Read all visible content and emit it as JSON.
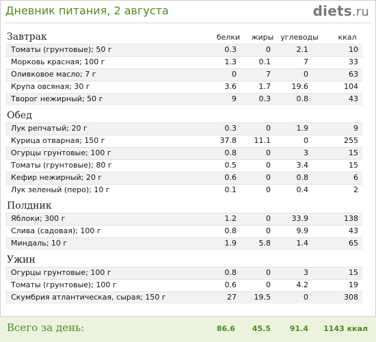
{
  "header": {
    "title": "Дневник питания, 2 августа",
    "logo_main": "diets",
    "logo_tld": ".ru"
  },
  "columns": [
    "белки",
    "жиры",
    "углеводы",
    "ккал"
  ],
  "sections": [
    {
      "title": "Завтрак",
      "rows": [
        {
          "name": "Томаты (грунтовые); 50 г",
          "protein": "0.3",
          "fat": "0",
          "carbs": "2.1",
          "kcal": "10"
        },
        {
          "name": "Морковь красная; 100 г",
          "protein": "1.3",
          "fat": "0.1",
          "carbs": "7",
          "kcal": "33"
        },
        {
          "name": "Оливковое масло; 7 г",
          "protein": "0",
          "fat": "7",
          "carbs": "0",
          "kcal": "63"
        },
        {
          "name": "Крупа овсяная; 30 г",
          "protein": "3.6",
          "fat": "1.7",
          "carbs": "19.6",
          "kcal": "104"
        },
        {
          "name": "Творог нежирный; 50 г",
          "protein": "9",
          "fat": "0.3",
          "carbs": "0.8",
          "kcal": "43"
        }
      ]
    },
    {
      "title": "Обед",
      "rows": [
        {
          "name": "Лук репчатый; 20 г",
          "protein": "0.3",
          "fat": "0",
          "carbs": "1.9",
          "kcal": "9"
        },
        {
          "name": "Курица отварная; 150 г",
          "protein": "37.8",
          "fat": "11.1",
          "carbs": "0",
          "kcal": "255"
        },
        {
          "name": "Огурцы грунтовые; 100 г",
          "protein": "0.8",
          "fat": "0",
          "carbs": "3",
          "kcal": "15"
        },
        {
          "name": "Томаты (грунтовые); 80 г",
          "protein": "0.5",
          "fat": "0",
          "carbs": "3.4",
          "kcal": "15"
        },
        {
          "name": "Кефир нежирный; 20 г",
          "protein": "0.6",
          "fat": "0",
          "carbs": "0.8",
          "kcal": "6"
        },
        {
          "name": "Лук зеленый (перо); 10 г",
          "protein": "0.1",
          "fat": "0",
          "carbs": "0.4",
          "kcal": "2"
        }
      ]
    },
    {
      "title": "Полдник",
      "rows": [
        {
          "name": "Яблоки; 300 г",
          "protein": "1.2",
          "fat": "0",
          "carbs": "33.9",
          "kcal": "138"
        },
        {
          "name": "Слива (садовая); 100 г",
          "protein": "0.8",
          "fat": "0",
          "carbs": "9.9",
          "kcal": "43"
        },
        {
          "name": "Миндаль; 10 г",
          "protein": "1.9",
          "fat": "5.8",
          "carbs": "1.4",
          "kcal": "65"
        }
      ]
    },
    {
      "title": "Ужин",
      "rows": [
        {
          "name": "Огурцы грунтовые; 100 г",
          "protein": "0.8",
          "fat": "0",
          "carbs": "3",
          "kcal": "15"
        },
        {
          "name": "Томаты (грунтовые); 100 г",
          "protein": "0.6",
          "fat": "0",
          "carbs": "4.2",
          "kcal": "19"
        },
        {
          "name": "Скумбрия атлантическая, сырая; 150 г",
          "protein": "27",
          "fat": "19.5",
          "carbs": "0",
          "kcal": "308"
        }
      ]
    }
  ],
  "totals": {
    "label": "Всего за день:",
    "protein": "86.6",
    "fat": "45.5",
    "carbs": "91.4",
    "kcal": "1143 ккал"
  }
}
